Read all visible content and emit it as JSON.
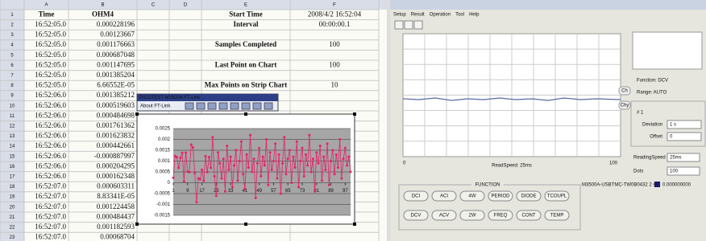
{
  "spreadsheet": {
    "col_labels": [
      "A",
      "B",
      "C",
      "D",
      "E",
      "F"
    ],
    "row_labels": [
      1,
      2,
      3,
      4,
      5,
      6,
      7,
      8,
      9,
      10,
      11,
      12,
      13,
      14,
      15,
      16,
      17,
      18,
      19,
      20,
      21,
      22,
      23
    ],
    "header": [
      "Time",
      "OHM4"
    ],
    "rows": [
      [
        "16:52:05.0",
        "0.000228196"
      ],
      [
        "16:52:05.0",
        "0.00123667"
      ],
      [
        "16:52:05.0",
        "0.001176663"
      ],
      [
        "16:52:05.0",
        "0.000687048"
      ],
      [
        "16:52:05.0",
        "0.001147695"
      ],
      [
        "16:52:05.0",
        "0.001385204"
      ],
      [
        "16:52:05.0",
        "6.66552E-05"
      ],
      [
        "16:52:06.0",
        "0.001385212"
      ],
      [
        "16:52:06.0",
        "0.000519603"
      ],
      [
        "16:52:06.0",
        "0.000484698"
      ],
      [
        "16:52:06.0",
        "0.001761362"
      ],
      [
        "16:52:06.0",
        "0.001623832"
      ],
      [
        "16:52:06.0",
        "0.000442661"
      ],
      [
        "16:52:06.0",
        "-0.000887997"
      ],
      [
        "16:52:06.0",
        "0.000204295"
      ],
      [
        "16:52:06.0",
        "0.000162348"
      ],
      [
        "16:52:07.0",
        "0.000603311"
      ],
      [
        "16:52:07.0",
        "8.83341E-05"
      ],
      [
        "16:52:07.0",
        "0.001224458"
      ],
      [
        "16:52:07.0",
        "0.000484437"
      ],
      [
        "16:52:07.0",
        "0.001182593"
      ],
      [
        "16:52:07.0",
        "0.00068704"
      ]
    ],
    "summary": [
      {
        "label": "Start Time",
        "value": "2008/4/2 16:52:04"
      },
      {
        "label": "Interval",
        "value": "00:00:00.1"
      },
      {
        "label": "Samples Completed",
        "value": "100"
      },
      {
        "label": "Last Point on Chart",
        "value": "100"
      },
      {
        "label": "Max Points on Strip Chart",
        "value": "10"
      }
    ]
  },
  "toolbar": {
    "title": "PICOTEST M3500A FT-Link",
    "button": "About FT-Link"
  },
  "excel_chart": {
    "ylim": [
      -0.0015,
      0.0025
    ],
    "yticks": [
      -0.0015,
      -0.001,
      -0.0005,
      0,
      0.0005,
      0.001,
      0.0015,
      0.002,
      0.0025
    ],
    "xlim": [
      1,
      100
    ],
    "xticks": [
      1,
      9,
      17,
      25,
      33,
      41,
      49,
      57,
      65,
      73,
      81,
      89,
      97
    ],
    "color": "#e8206a",
    "values": [
      0.000228,
      0.001237,
      0.001177,
      0.000687,
      0.001148,
      0.001385,
      6.7e-05,
      0.001385,
      0.00052,
      0.000485,
      0.001761,
      0.001624,
      0.000443,
      -0.000888,
      0.000204,
      0.000162,
      0.000603,
      8.8e-05,
      0.001224,
      0.000484,
      0.001183,
      0.000687,
      0.0021,
      0.0003,
      -0.0006,
      0.0014,
      0.0009,
      0.0002,
      0.0011,
      -0.0004,
      0.0017,
      0.0006,
      0.0012,
      -0.0002,
      0.0008,
      0.0015,
      0.0001,
      0.001,
      0.0019,
      0.0004,
      -0.0003,
      0.0013,
      0.0007,
      0.0022,
      0.0005,
      0.0011,
      -0.0007,
      0.0009,
      0.0016,
      0.0003,
      0.0012,
      0.0008,
      0.002,
      -0.0001,
      0.0014,
      0.0006,
      0.001,
      0.0018,
      0.0002,
      0.0013,
      -0.0005,
      0.0009,
      0.0021,
      0.0004,
      0.0011,
      0.0015,
      0,
      0.0012,
      0.0007,
      0.0019,
      -0.0002,
      0.001,
      0.0016,
      0.0003,
      0.0013,
      0.0008,
      0.0022,
      0.0005,
      0.0011,
      -0.0004,
      0.0014,
      0.0009,
      0.0017,
      0.0001,
      0.0012,
      0.0006,
      0.0018,
      -0.0001,
      0.001,
      0.0015,
      0.0004,
      0.0013,
      0.0007,
      0.002,
      0.0002,
      0.0011,
      0.0016,
      0.0008,
      0.0012,
      0.0005
    ]
  },
  "app": {
    "menu": [
      "Setup",
      "Result",
      "Operation",
      "Tool",
      "Help"
    ],
    "strip_chart": {
      "x_start": "0",
      "x_end": "100",
      "caption": "ReadSpeed: 25ms",
      "side_buttons": [
        "Ch",
        "Chy"
      ]
    },
    "info": [
      "Function: DCV",
      "Range: AUTO"
    ],
    "group": "# 1",
    "fields": [
      {
        "label": "Deviation",
        "value": "1 s"
      },
      {
        "label": "Offset",
        "value": "0"
      }
    ],
    "selects": [
      {
        "label": "ReadingSpeed",
        "value": "25ms"
      },
      {
        "label": "Dots",
        "value": "100"
      }
    ],
    "status": "M3500A-USBTMC-TW0B0432 2 s",
    "reading": "0.000000000",
    "function_label": "FUNCTION",
    "buttons": [
      [
        "DCI",
        "ACI",
        "4W",
        "PERIOD",
        "DIODE",
        "TCOUPL"
      ],
      [
        "DCV",
        "ACV",
        "2W",
        "FREQ",
        "CONT",
        "TEMP"
      ]
    ]
  }
}
